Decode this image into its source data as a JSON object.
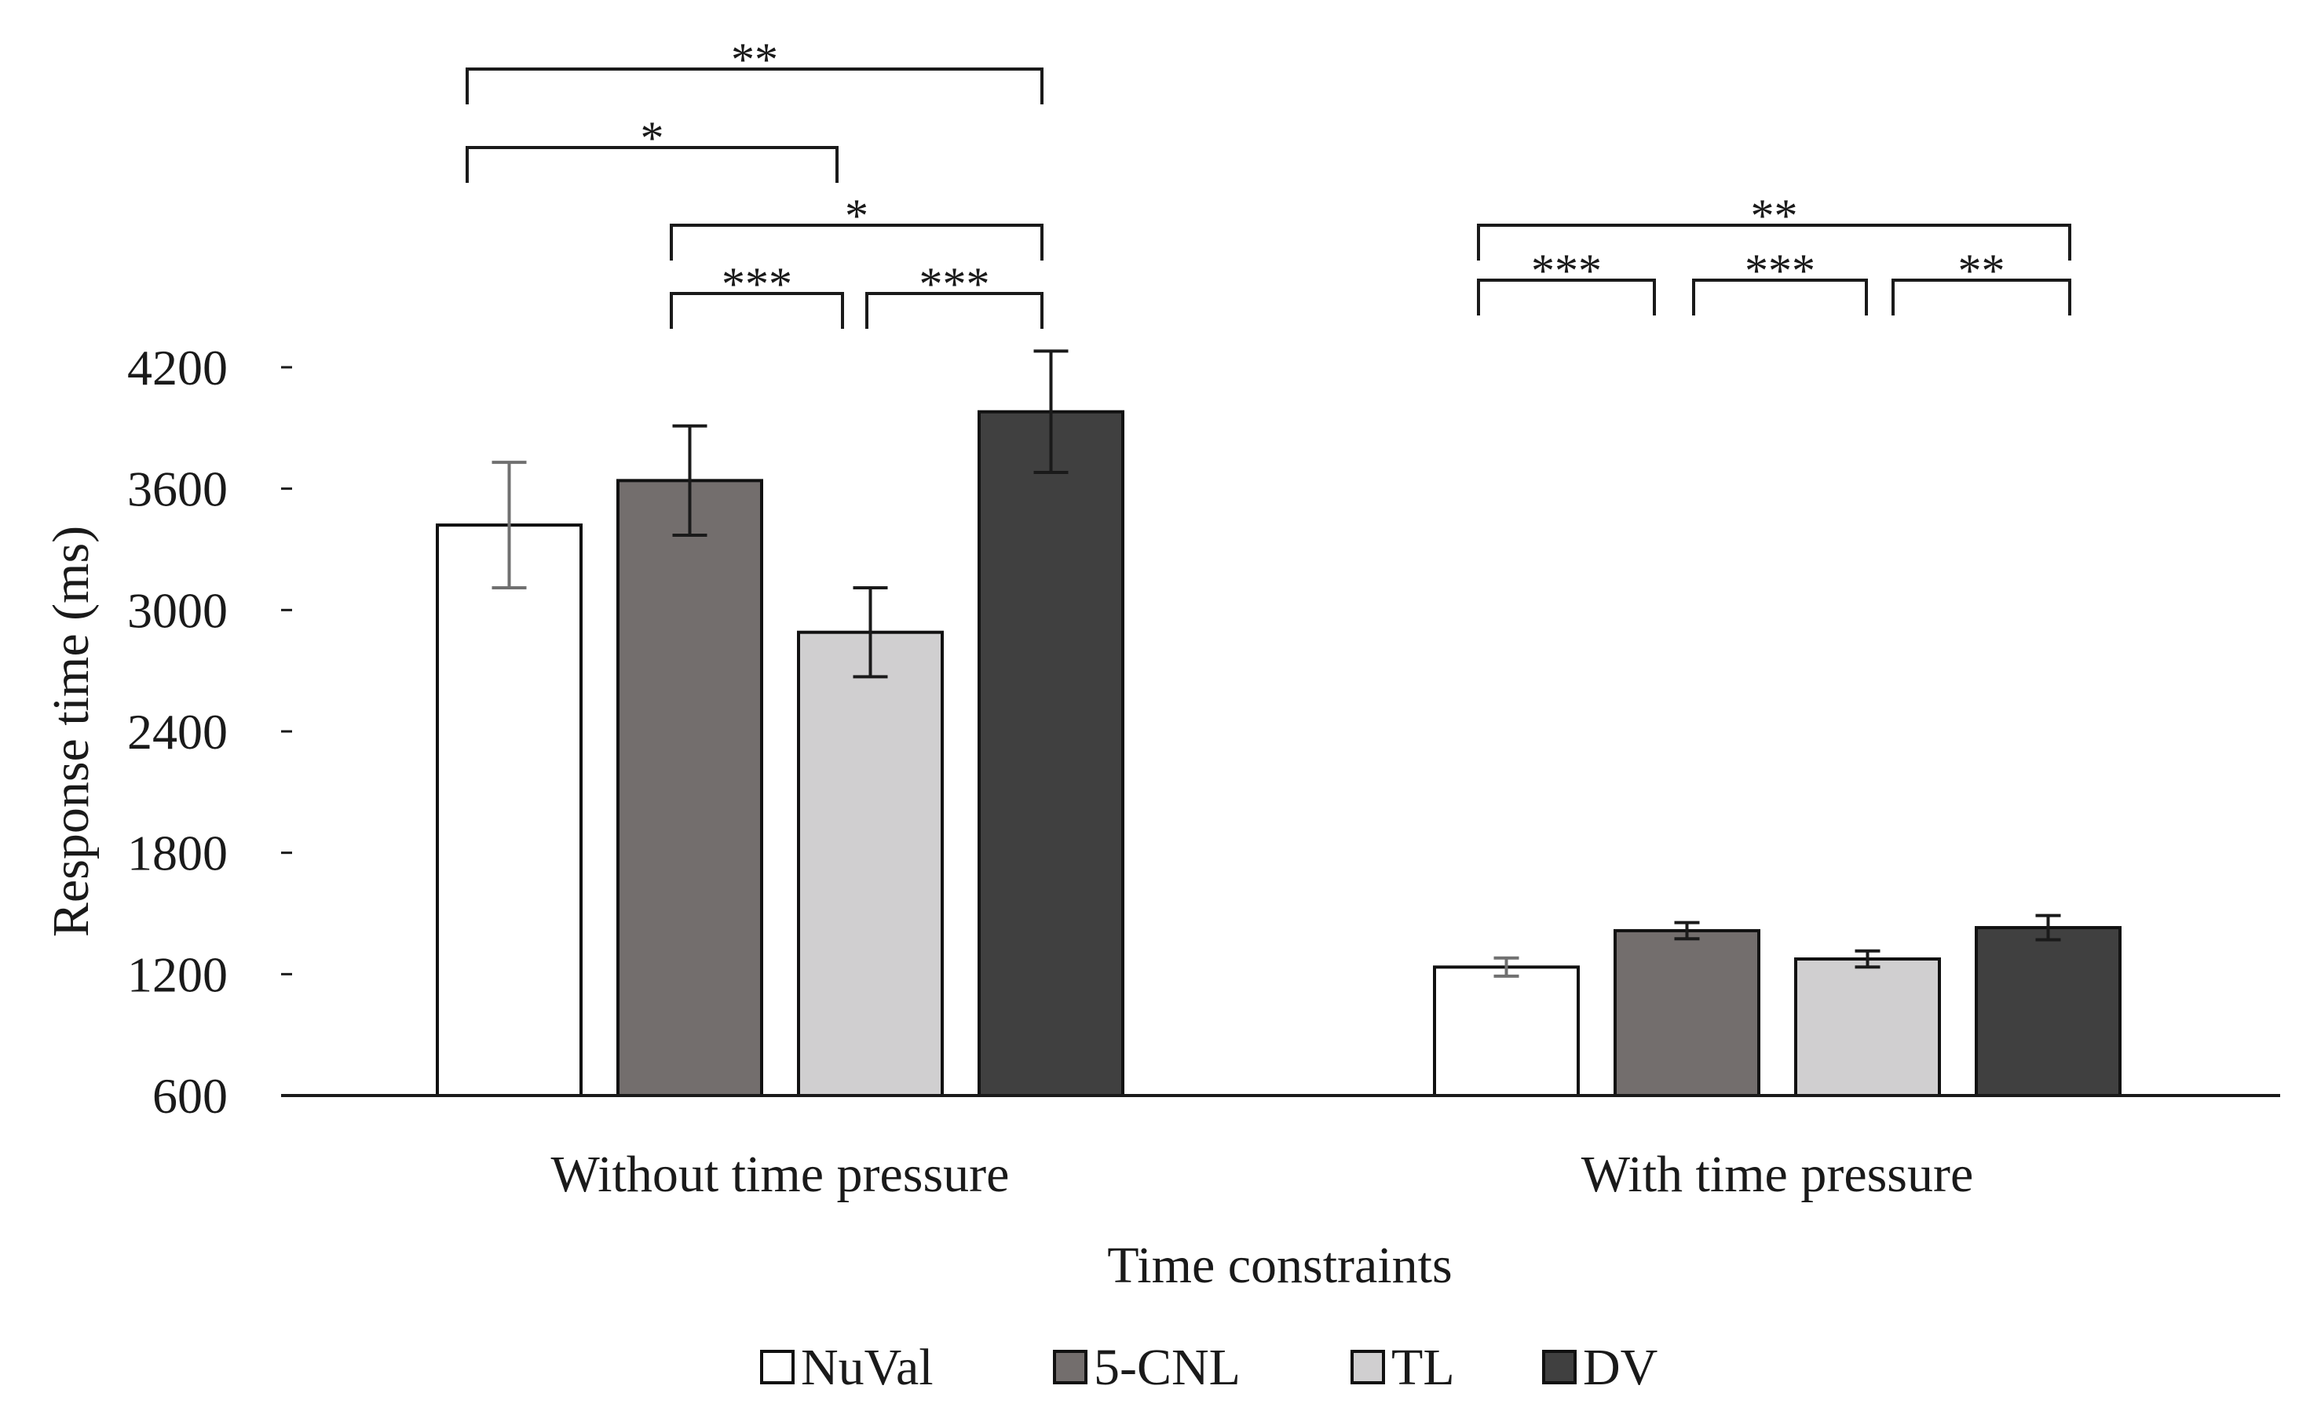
{
  "chart_data": {
    "type": "bar",
    "title": "",
    "xlabel": "Time constraints",
    "ylabel": "Response time (ms)",
    "ylim": [
      600,
      4200
    ],
    "yticks": [
      600,
      1200,
      1800,
      2400,
      3000,
      3600,
      4200
    ],
    "categories": [
      "Without time pressure",
      "With time pressure"
    ],
    "series": [
      {
        "name": "NuVal",
        "color": "#ffffff",
        "values": [
          3420,
          1235
        ],
        "errors": [
          310,
          45
        ]
      },
      {
        "name": "5-CNL",
        "color": "#736e6d",
        "values": [
          3640,
          1415
        ],
        "errors": [
          270,
          40
        ]
      },
      {
        "name": "TL",
        "color": "#d0cfd0",
        "values": [
          2890,
          1275
        ],
        "errors": [
          220,
          40
        ]
      },
      {
        "name": "DV",
        "color": "#404040",
        "values": [
          3980,
          1430
        ],
        "errors": [
          300,
          60
        ]
      }
    ],
    "error_bar_colors": [
      "#707070",
      "#1a1a1a",
      "#1a1a1a",
      "#1a1a1a"
    ],
    "legend_position": "bottom-center",
    "significance": [
      {
        "category": 0,
        "from": 0,
        "to": 3,
        "label": "**"
      },
      {
        "category": 0,
        "from": 0,
        "to": 2,
        "label": "*"
      },
      {
        "category": 0,
        "from": 1,
        "to": 3,
        "label": "*"
      },
      {
        "category": 0,
        "from": 1,
        "to": 2,
        "label": "***"
      },
      {
        "category": 0,
        "from": 2,
        "to": 3,
        "label": "***"
      },
      {
        "category": 1,
        "from": 0,
        "to": 3,
        "label": "**"
      },
      {
        "category": 1,
        "from": 0,
        "to": 1,
        "label": "***"
      },
      {
        "category": 1,
        "from": 1,
        "to": 2,
        "label": "***"
      },
      {
        "category": 1,
        "from": 2,
        "to": 3,
        "label": "**"
      }
    ]
  }
}
